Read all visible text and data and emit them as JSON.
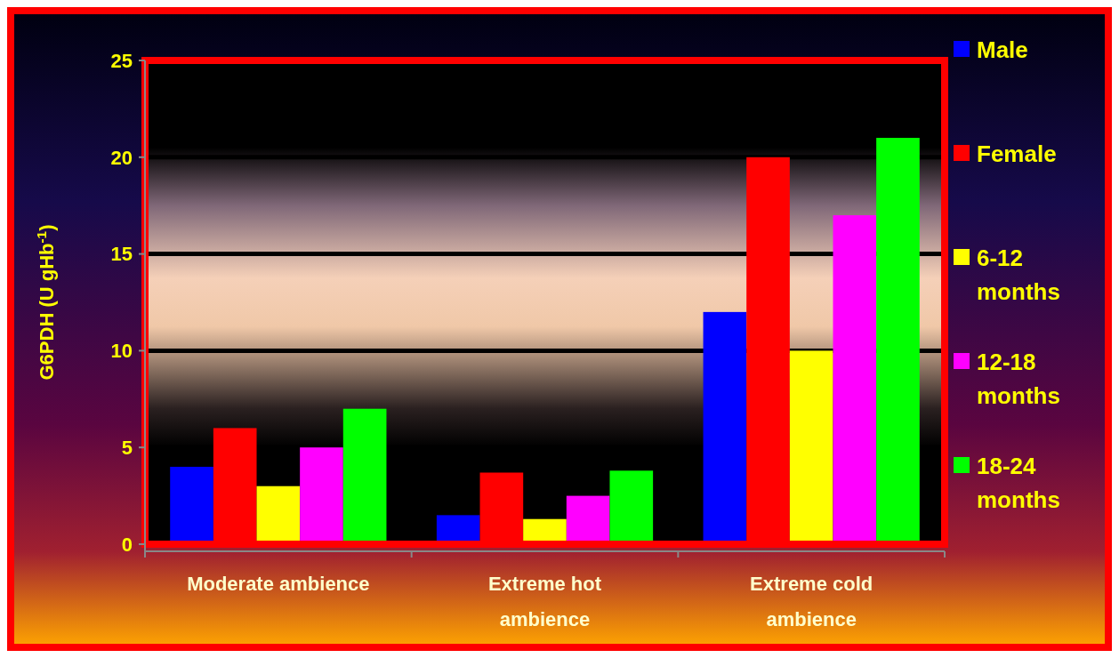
{
  "chart_data": {
    "type": "bar",
    "ylabel": "G6PDH (U gHb$^{-1}$)",
    "categories": [
      "Moderate ambience",
      "Extreme hot ambience",
      "Extreme cold ambience"
    ],
    "series": [
      {
        "name": "Male",
        "color": "#0000ff",
        "values": [
          4,
          1.5,
          12
        ]
      },
      {
        "name": "Female",
        "color": "#ff0000",
        "values": [
          6,
          3.7,
          20
        ]
      },
      {
        "name": "6-12 months",
        "color": "#ffff00",
        "values": [
          3,
          1.3,
          10
        ]
      },
      {
        "name": "12-18 months",
        "color": "#ff00ff",
        "values": [
          5,
          2.5,
          17
        ]
      },
      {
        "name": "18-24 months",
        "color": "#00ff00",
        "values": [
          7,
          3.8,
          21
        ]
      }
    ],
    "ylim": [
      0,
      25
    ],
    "yticks": [
      0,
      5,
      10,
      15,
      20,
      25
    ],
    "grid": "y",
    "legend": "right"
  }
}
